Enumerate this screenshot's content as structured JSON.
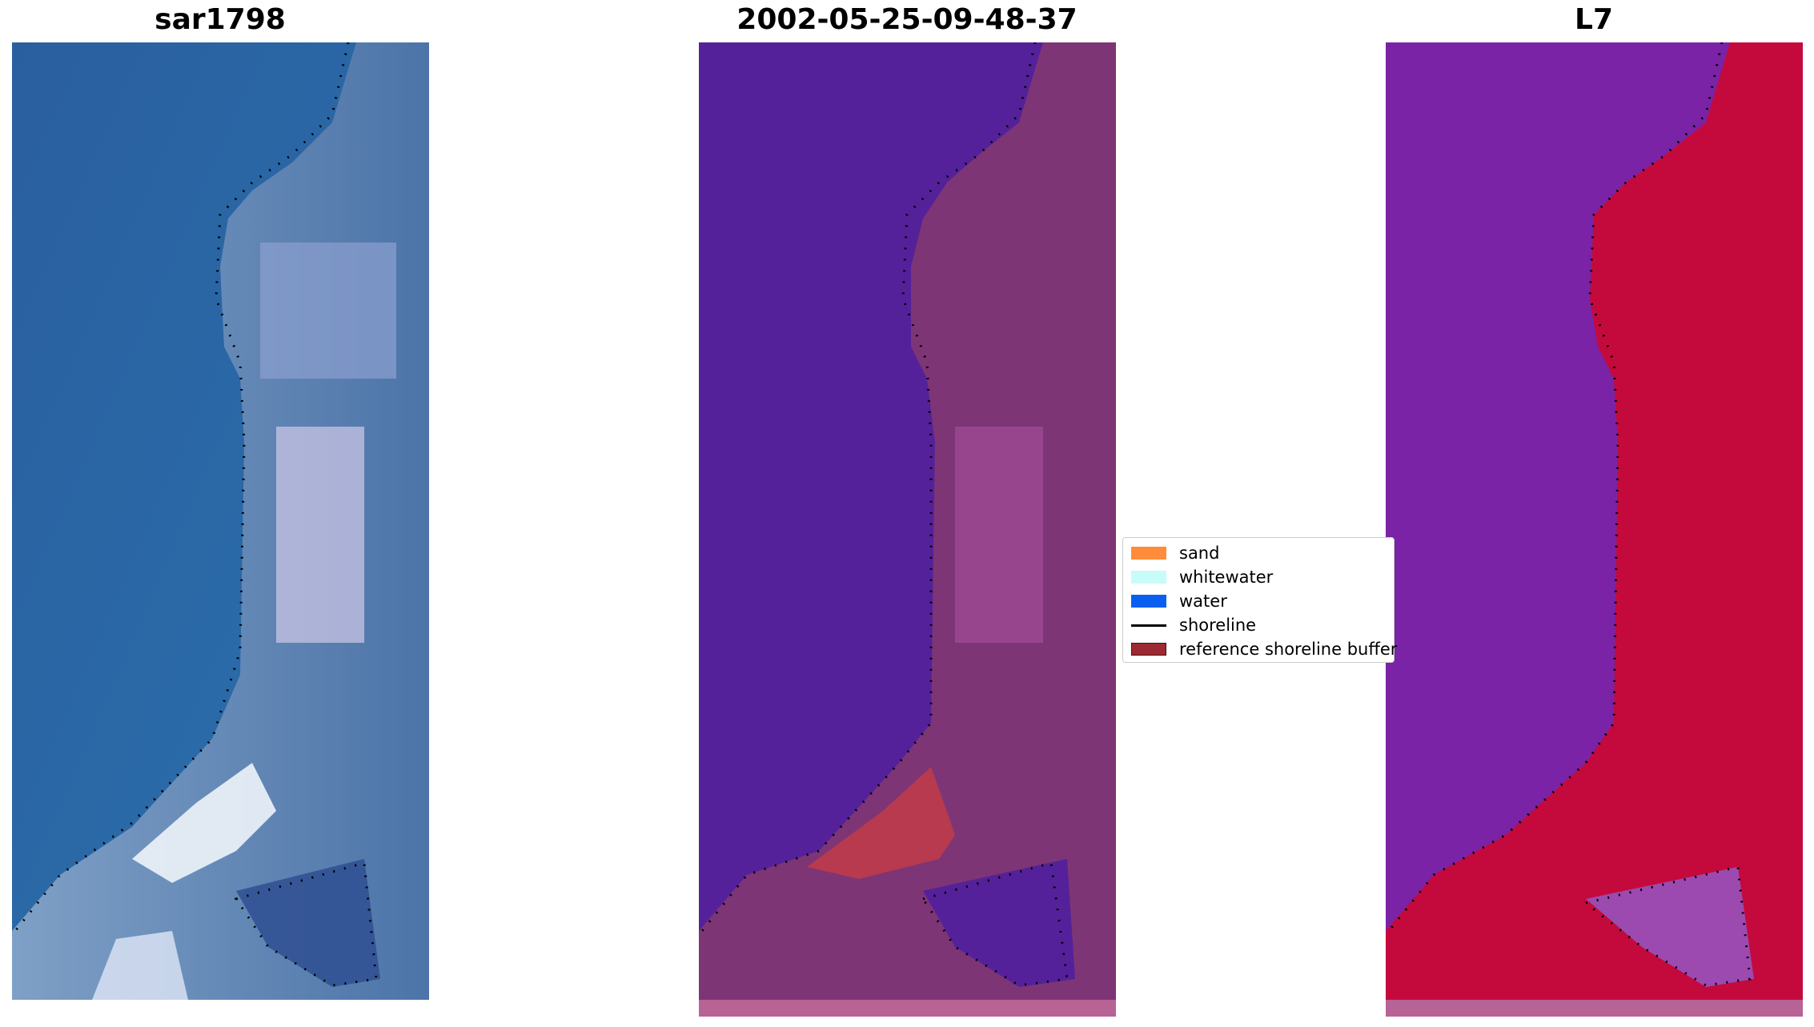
{
  "panels": {
    "rgb": {
      "title": "sar1798"
    },
    "classified": {
      "title": "2002-05-25-09-48-37"
    },
    "index": {
      "title": "L7"
    }
  },
  "legend": {
    "items": [
      {
        "label": "sand",
        "color": "#ff8c3a",
        "kind": "patch"
      },
      {
        "label": "whitewater",
        "color": "#c8fcf8",
        "kind": "patch"
      },
      {
        "label": "water",
        "color": "#0a5ff0",
        "kind": "patch"
      },
      {
        "label": "shoreline",
        "color": "#000000",
        "kind": "line"
      },
      {
        "label": "reference shoreline buffer",
        "color": "#9c2a32",
        "kind": "patch"
      }
    ]
  },
  "colors": {
    "rgb_water": "#2a68a8",
    "rgb_land": "#6f8fb8",
    "classified_water": "#55219a",
    "classified_land": "#7e3575",
    "buffer": "#b83a4e",
    "index_water": "#7a23a6",
    "index_land": "#c40a3c",
    "shoreline": "#000000"
  }
}
